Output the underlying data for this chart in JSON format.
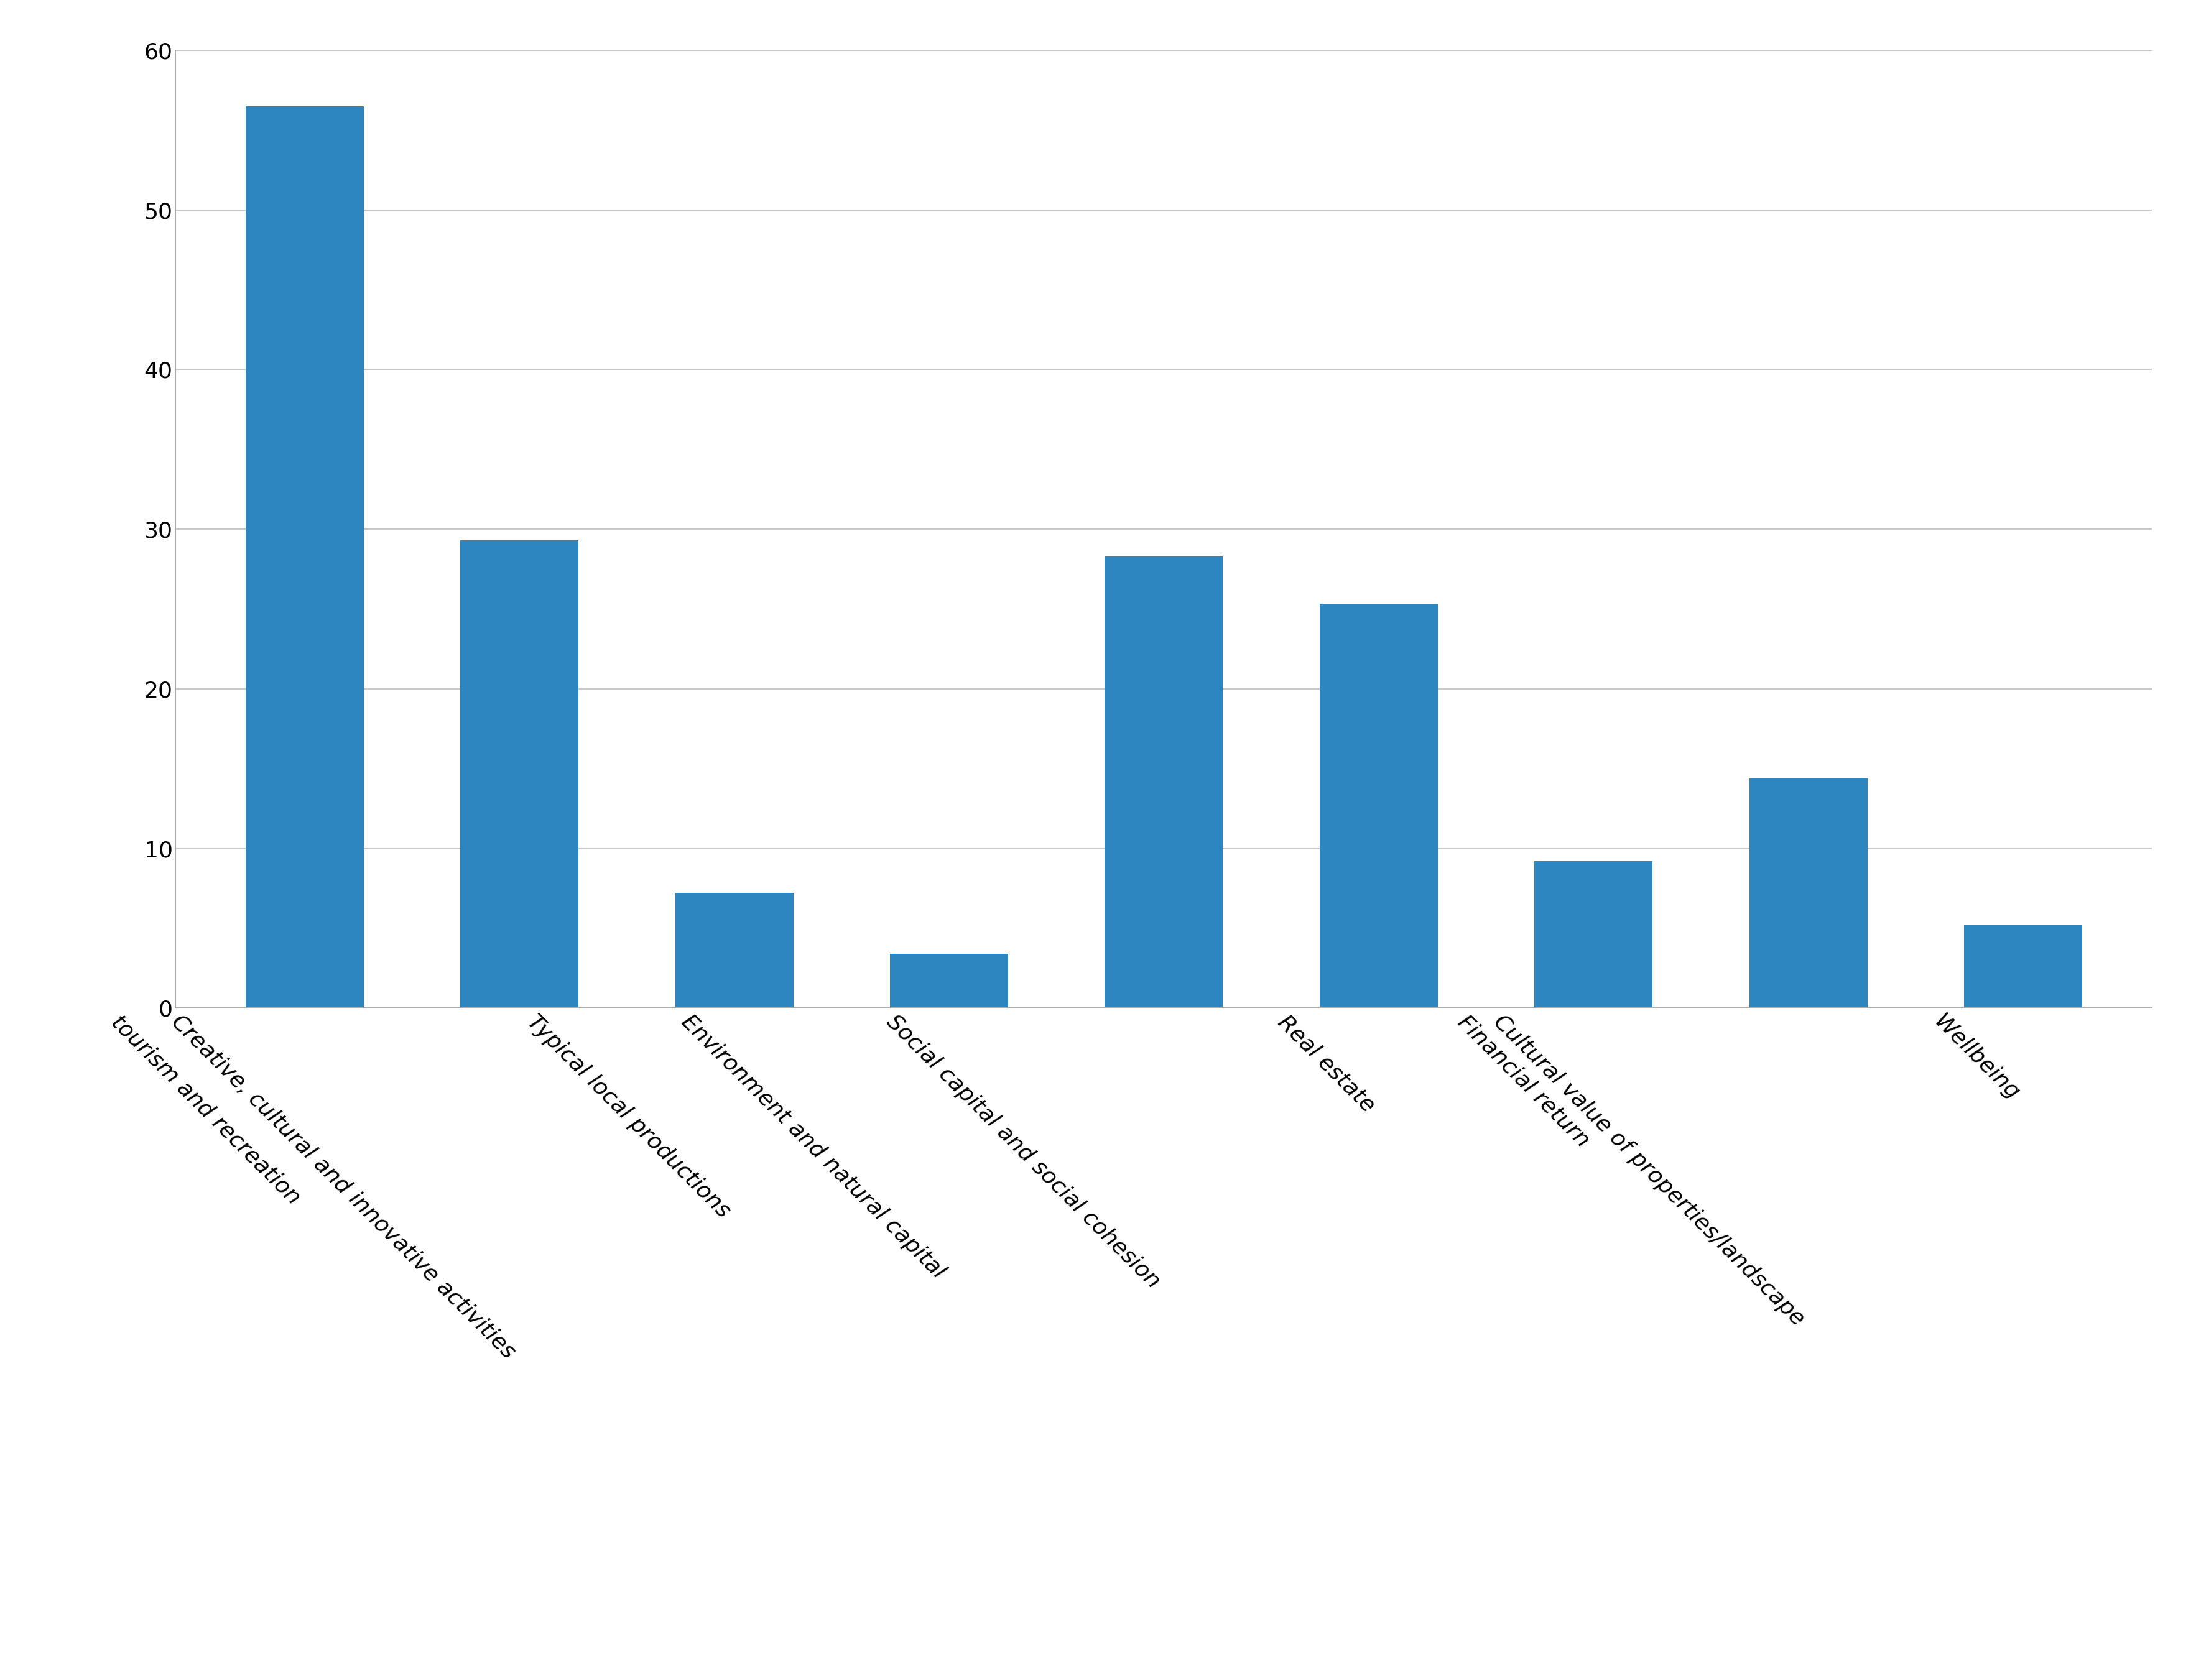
{
  "categories": [
    "tourism and recreation",
    "Creative, cultural and innovative activities",
    "Typical local productions",
    "Environment and natural capital",
    "Social capital and social cohesion",
    "Real estate",
    "Financial return",
    "Cultural value of properties/landscape",
    "Wellbeing"
  ],
  "values": [
    56.5,
    29.3,
    7.2,
    3.4,
    28.3,
    25.3,
    9.2,
    14.4,
    5.2
  ],
  "bar_color": "#2e86c1",
  "ylim": [
    0,
    60
  ],
  "yticks": [
    0,
    10,
    20,
    30,
    40,
    50,
    60
  ],
  "background_color": "#ffffff",
  "grid_color": "#c8c8c8",
  "tick_label_fontsize": 26,
  "label_rotation": -45,
  "bar_width": 0.55
}
